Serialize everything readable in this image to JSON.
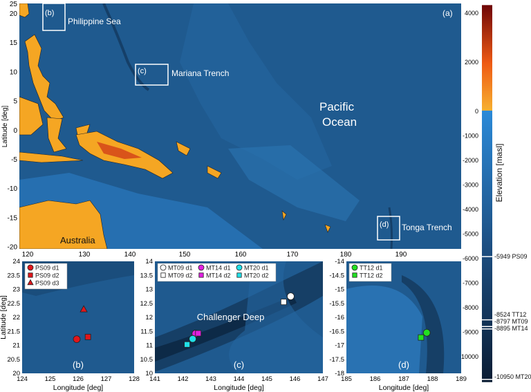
{
  "main_map": {
    "panel_label": "(a)",
    "ylabel": "Latitude [deg]",
    "xticks": [
      "120",
      "130",
      "140",
      "150",
      "160",
      "170",
      "180",
      "190"
    ],
    "yticks": [
      "20",
      "15",
      "10",
      "5",
      "0",
      "-5",
      "-10",
      "-15",
      "-20"
    ],
    "yticks_top": "25",
    "labels": {
      "philippine_sea": "Philippine Sea",
      "mariana_trench": "Mariana Trench",
      "pacific_ocean_1": "Pacific",
      "pacific_ocean_2": "Ocean",
      "tonga_trench": "Tonga Trench",
      "australia": "Australia"
    },
    "box_labels": {
      "b": "(b)",
      "c": "(c)",
      "d": "(d)"
    },
    "colors": {
      "ocean": "#1f5a8f",
      "land": "#f5a623",
      "highland": "#d9541a"
    }
  },
  "colorbar": {
    "label": "Elevation [masl]",
    "ticks": [
      4000,
      2000,
      0,
      -1000,
      -2000,
      -3000,
      -4000,
      -5000,
      -6000,
      -7000,
      -8000,
      -9000,
      -10000
    ],
    "range": [
      -10950,
      4300
    ],
    "markers": [
      {
        "value": -5949,
        "label": "-5949 PS09"
      },
      {
        "value": -8524,
        "label": "-8524 TT12"
      },
      {
        "value": -8797,
        "label": "-8797 MT09"
      },
      {
        "value": -8895,
        "label": "-8895 MT14"
      },
      {
        "value": -10950,
        "label": "-10950 MT20"
      }
    ]
  },
  "panels": [
    {
      "id": "b",
      "panel_label": "(b)",
      "xlabel": "Longitude [deg]",
      "ylabel": "Latitude [deg]",
      "xlim": [
        124,
        128
      ],
      "ylim": [
        20,
        24
      ],
      "xticks": [
        "124",
        "125",
        "126",
        "127",
        "128"
      ],
      "yticks": [
        "24",
        "23.5",
        "23",
        "22.5",
        "22",
        "21.5",
        "21",
        "20.5",
        "20"
      ],
      "legend": [
        {
          "label": "PS09 d1",
          "marker": "circle",
          "color": "#e0161b"
        },
        {
          "label": "PS09 d2",
          "marker": "square",
          "color": "#e0161b"
        },
        {
          "label": "PS09 d3",
          "marker": "triangle",
          "color": "#e0161b"
        }
      ],
      "points": [
        {
          "name": "PS09 d1",
          "lon": 125.95,
          "lat": 21.22,
          "marker": "circle",
          "color": "#e0161b"
        },
        {
          "name": "PS09 d2",
          "lon": 126.35,
          "lat": 21.3,
          "marker": "square",
          "color": "#e0161b"
        },
        {
          "name": "PS09 d3",
          "lon": 126.2,
          "lat": 22.28,
          "marker": "triangle",
          "color": "#e0161b"
        }
      ]
    },
    {
      "id": "c",
      "panel_label": "(c)",
      "xlabel": "Longitude [deg]",
      "xlim": [
        141,
        147
      ],
      "ylim": [
        10,
        14
      ],
      "xticks": [
        "141",
        "142",
        "143",
        "144",
        "145",
        "146",
        "147"
      ],
      "yticks": [
        "14",
        "13.5",
        "13",
        "12.5",
        "12",
        "11.5",
        "11",
        "10.5",
        "10"
      ],
      "annotation": "Challenger Deep",
      "legend": [
        {
          "label": "MT09 d1",
          "marker": "circle",
          "color": "#ffffff"
        },
        {
          "label": "MT09 d2",
          "marker": "square",
          "color": "#ffffff"
        },
        {
          "label": "MT14 d1",
          "marker": "circle",
          "color": "#e020e0"
        },
        {
          "label": "MT14 d2",
          "marker": "square",
          "color": "#e020e0"
        },
        {
          "label": "MT20 d1",
          "marker": "circle",
          "color": "#20e0e8"
        },
        {
          "label": "MT20 d2",
          "marker": "square",
          "color": "#20e0e8"
        }
      ],
      "points": [
        {
          "name": "MT09 d1",
          "lon": 145.85,
          "lat": 12.75,
          "marker": "circle",
          "color": "#ffffff"
        },
        {
          "name": "MT09 d2",
          "lon": 145.6,
          "lat": 12.55,
          "marker": "square",
          "color": "#ffffff"
        },
        {
          "name": "MT14 d1",
          "lon": 142.45,
          "lat": 11.42,
          "marker": "circle",
          "color": "#e020e0"
        },
        {
          "name": "MT14 d2",
          "lon": 142.55,
          "lat": 11.43,
          "marker": "square",
          "color": "#e020e0"
        },
        {
          "name": "MT20 d1",
          "lon": 142.35,
          "lat": 11.23,
          "marker": "circle",
          "color": "#20e0e8"
        },
        {
          "name": "MT20 d2",
          "lon": 142.15,
          "lat": 11.03,
          "marker": "square",
          "color": "#20e0e8"
        }
      ]
    },
    {
      "id": "d",
      "panel_label": "(d)",
      "xlabel": "Longitude [deg]",
      "xlim": [
        185,
        189
      ],
      "ylim": [
        -18,
        -14
      ],
      "xticks": [
        "185",
        "186",
        "187",
        "188",
        "189"
      ],
      "yticks": [
        "-14",
        "-14.5",
        "-15",
        "-15.5",
        "-16",
        "-16.5",
        "-17",
        "-17.5",
        "-18"
      ],
      "legend": [
        {
          "label": "TT12 d1",
          "marker": "circle",
          "color": "#22e022"
        },
        {
          "label": "TT12 d2",
          "marker": "square",
          "color": "#22e022"
        }
      ],
      "points": [
        {
          "name": "TT12 d1",
          "lon": 187.8,
          "lat": -16.55,
          "marker": "circle",
          "color": "#22e022"
        },
        {
          "name": "TT12 d2",
          "lon": 187.6,
          "lat": -16.72,
          "marker": "square",
          "color": "#22e022"
        }
      ]
    }
  ]
}
